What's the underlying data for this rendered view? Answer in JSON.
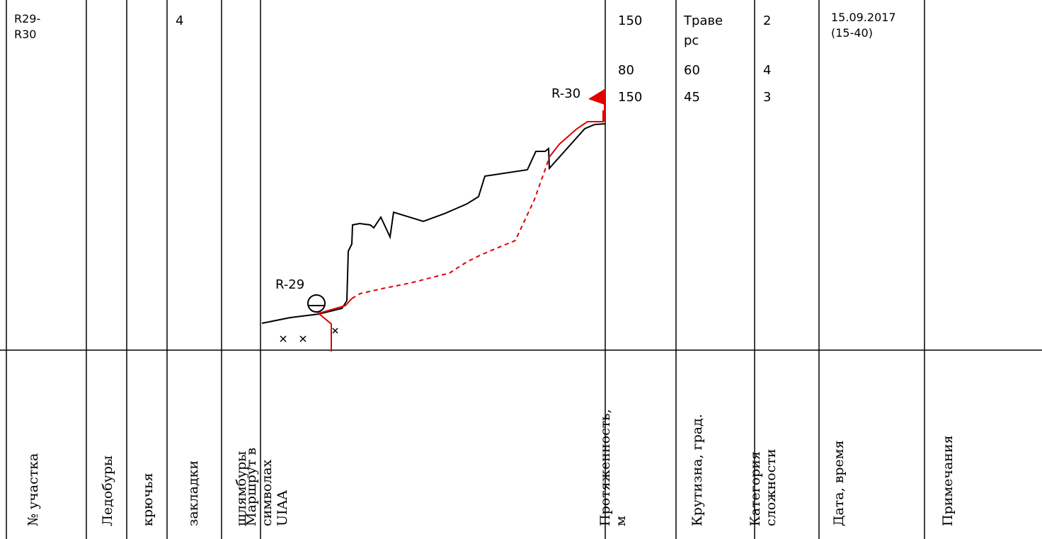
{
  "row": {
    "section": "R29-\nR30",
    "ice_screws": "",
    "pitons": "",
    "nuts": "4",
    "bolts": "",
    "length_lines": [
      "150",
      "80",
      "150"
    ],
    "steepness_lines": [
      "Траве\nрс",
      "60",
      "45"
    ],
    "category_lines": [
      "2",
      "4",
      "3"
    ],
    "datetime": "15.09.2017\n(15-40)",
    "notes": ""
  },
  "route": {
    "start_label": "R-29",
    "end_label": "R-30",
    "route_color": "#e00000",
    "terrain_color": "#000000"
  },
  "headers": {
    "section": "№ участка",
    "ice_screws": "Ледобуры",
    "pitons": "крючья",
    "nuts": "закладки",
    "bolts": "шлямбуры",
    "route": "Маршрут в\nсимволах\nUIAA",
    "length": "Протяженность,\nм",
    "steepness": "Крутизна, град.",
    "category": "Категория\nсложности",
    "datetime": "Дата, время",
    "notes": "Примечания"
  }
}
